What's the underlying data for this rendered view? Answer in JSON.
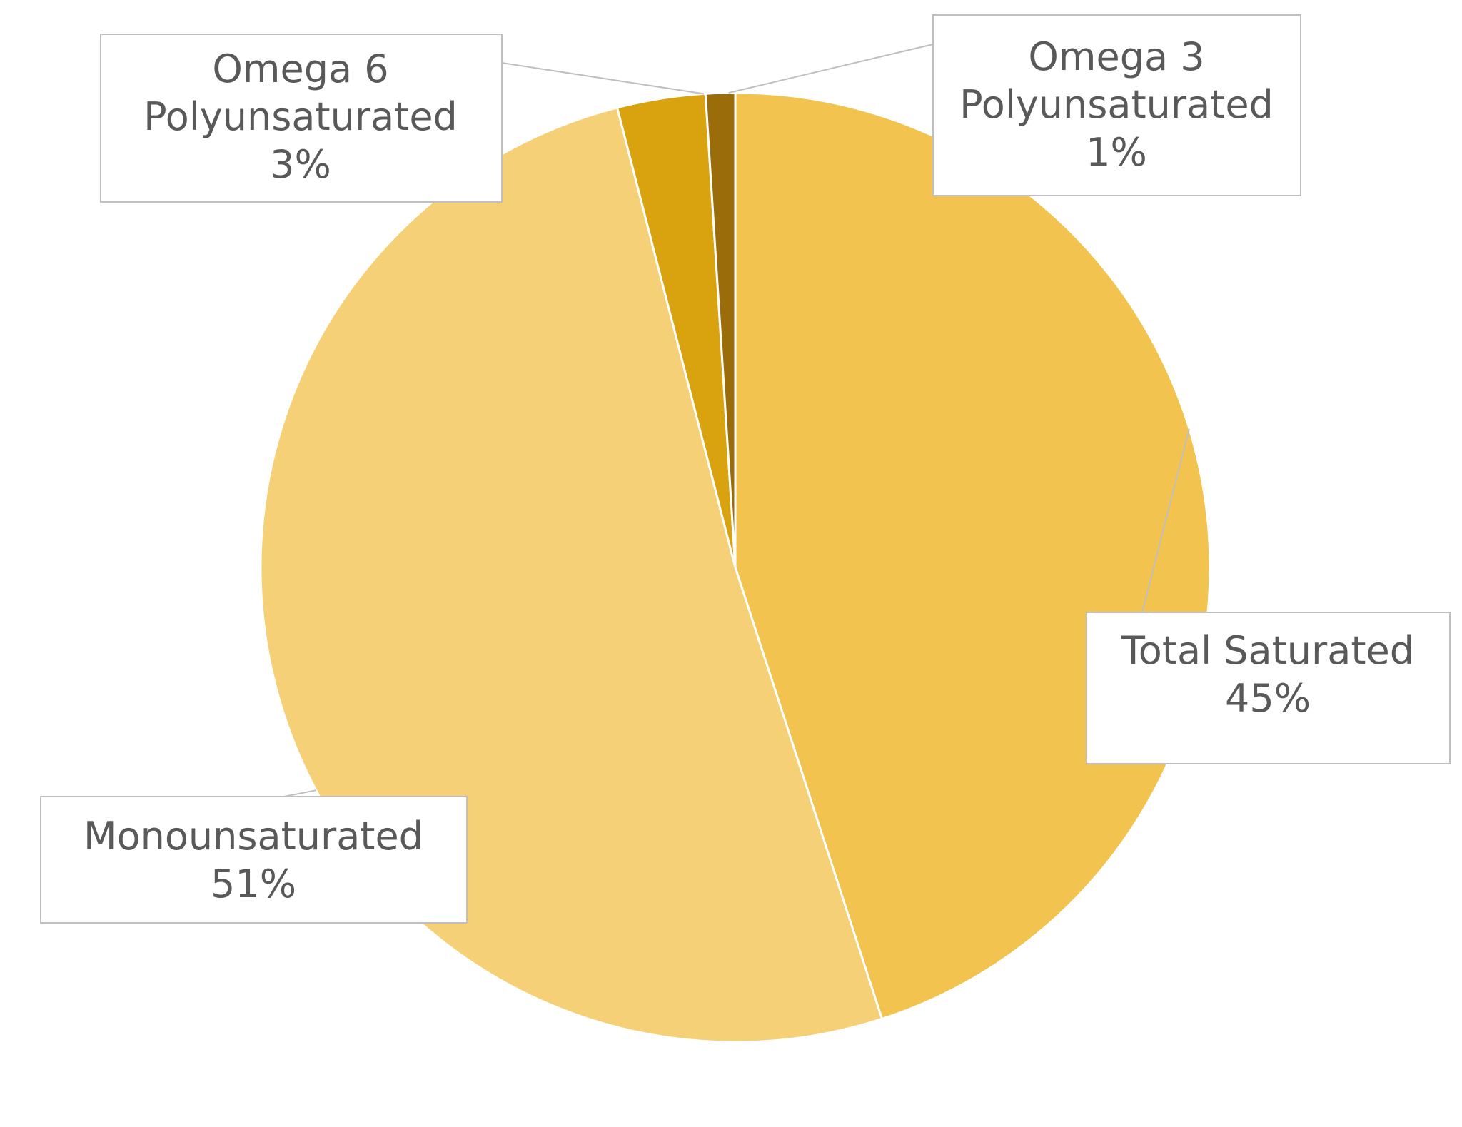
{
  "chart_data": {
    "type": "pie",
    "title": "",
    "slices": [
      {
        "name": "Total Saturated",
        "value": 45,
        "label": "45%",
        "color": "#F2C44F"
      },
      {
        "name": "Monounsaturated",
        "value": 51,
        "label": "51%",
        "color": "#F5D076"
      },
      {
        "name": "Omega 6\nPolyunsaturated",
        "value": 3,
        "label": "3%",
        "color": "#D9A20F"
      },
      {
        "name": "Omega 3\nPolyunsaturated",
        "value": 1,
        "label": "1%",
        "color": "#9A6D0A"
      }
    ],
    "start_angle_deg": 0,
    "direction": "clockwise",
    "legend": "none",
    "data_labels": "callouts-with-category-and-percent"
  }
}
